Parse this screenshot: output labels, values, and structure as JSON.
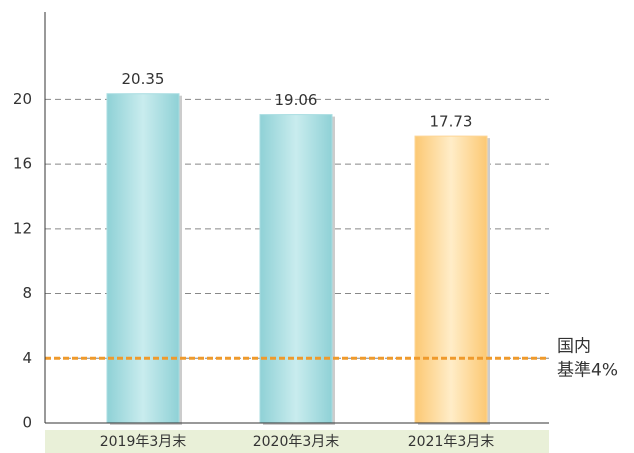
{
  "chart_data": {
    "type": "bar",
    "categories": [
      "2019年3月末",
      "2020年3月末",
      "2021年3月末"
    ],
    "values": [
      20.35,
      19.06,
      17.73
    ],
    "colors": [
      "#a9dde1",
      "#a9dde1",
      "#fdd696"
    ],
    "ylim": [
      0,
      25.4
    ],
    "yticks": [
      0,
      4,
      8,
      12,
      16,
      20
    ],
    "grid": true,
    "reference_line": {
      "value": 4,
      "label": [
        "国内",
        "基準4%"
      ],
      "color": "#ef9a2c"
    }
  }
}
